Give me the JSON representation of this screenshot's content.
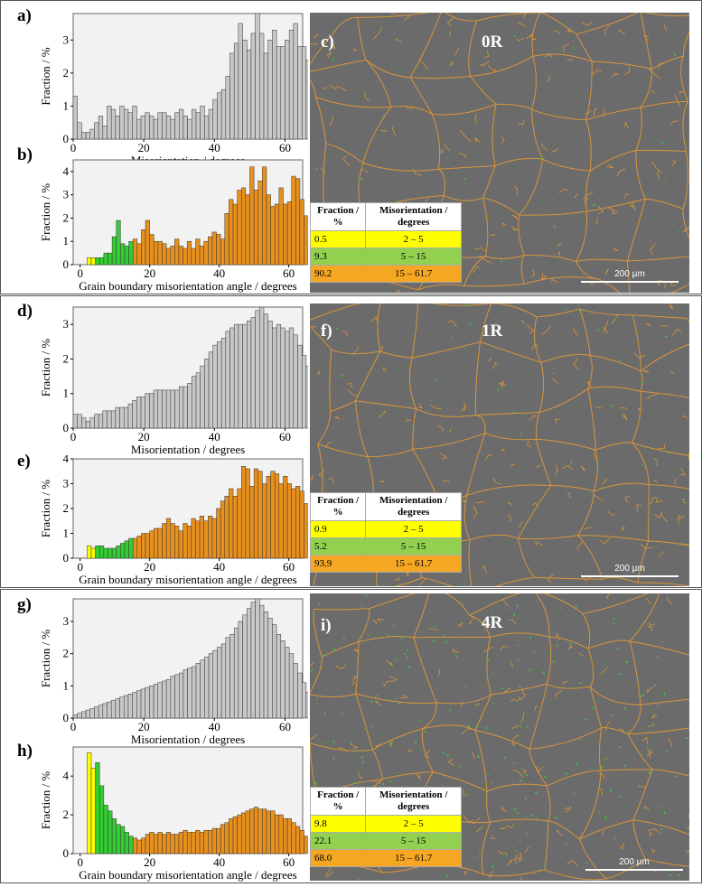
{
  "colors": {
    "gray": "#c8c8c8",
    "yellow": "#ffff00",
    "green": "#33cc33",
    "orange": "#e8901e",
    "map_bg": "#6b6b6b",
    "boundary_orange": "#d9953a",
    "boundary_green": "#3ccf3c"
  },
  "panels": [
    {
      "id": "top",
      "labels": {
        "hist_all": "a)",
        "hist_color": "b)",
        "map": "c)"
      },
      "sample": "0R",
      "table": {
        "head": [
          "Fraction / %",
          "Misorientation / degrees"
        ],
        "rows": [
          {
            "fraction": "0.5",
            "range": "2 – 5",
            "color": "#ffff00"
          },
          {
            "fraction": "9.3",
            "range": "5 – 15",
            "color": "#92d050"
          },
          {
            "fraction": "90.2",
            "range": "15 – 61.7",
            "color": "#f5a623"
          }
        ]
      },
      "scale": "200 µm"
    },
    {
      "id": "mid",
      "labels": {
        "hist_all": "d)",
        "hist_color": "e)",
        "map": "f)"
      },
      "sample": "1R",
      "table": {
        "head": [
          "Fraction / %",
          "Misorientation / degrees"
        ],
        "rows": [
          {
            "fraction": "0.9",
            "range": "2 – 5",
            "color": "#ffff00"
          },
          {
            "fraction": "5.2",
            "range": "5 – 15",
            "color": "#92d050"
          },
          {
            "fraction": "93.9",
            "range": "15 – 61.7",
            "color": "#f5a623"
          }
        ]
      },
      "scale": "200 µm"
    },
    {
      "id": "bot",
      "labels": {
        "hist_all": "g)",
        "hist_color": "h)",
        "map": "i)"
      },
      "sample": "4R",
      "table": {
        "head": [
          "Fraction / %",
          "Misorientation / degrees"
        ],
        "rows": [
          {
            "fraction": "9.8",
            "range": "2 – 5",
            "color": "#ffff00"
          },
          {
            "fraction": "22.1",
            "range": "5 – 15",
            "color": "#92d050"
          },
          {
            "fraction": "68.0",
            "range": "15 – 61.7",
            "color": "#f5a623"
          }
        ]
      },
      "scale": "200 µm"
    }
  ],
  "chart_data": [
    {
      "id": "a",
      "type": "bar",
      "title": "",
      "xlabel": "Misorientation / degrees",
      "ylabel": "Fraction / %",
      "xlim": [
        0,
        65
      ],
      "ylim": [
        0,
        3.8
      ],
      "xticks": [
        0,
        20,
        40,
        60
      ],
      "yticks": [
        0,
        1,
        2,
        3
      ],
      "bin": 1.2,
      "values": [
        1.3,
        0.5,
        0.2,
        0.2,
        0.3,
        0.5,
        0.7,
        0.4,
        1.0,
        0.9,
        0.7,
        1.0,
        0.9,
        0.8,
        1.0,
        0.6,
        0.7,
        0.8,
        0.7,
        0.6,
        0.8,
        0.8,
        0.7,
        0.6,
        0.8,
        0.9,
        0.7,
        0.6,
        0.9,
        0.8,
        1.0,
        0.7,
        0.9,
        1.2,
        1.4,
        1.5,
        1.9,
        2.6,
        2.9,
        3.5,
        3.0,
        2.7,
        3.2,
        3.8,
        3.2,
        2.6,
        3.0,
        3.3,
        2.8,
        2.8,
        3.0,
        3.3,
        3.5,
        2.8,
        2.8,
        2.4,
        3.2,
        2.6,
        1.9,
        1.1,
        0.5
      ]
    },
    {
      "id": "b",
      "type": "bar",
      "xlabel": "Grain boundary misorientation angle / degrees",
      "ylabel": "Fraction / %",
      "xlim": [
        -2,
        64
      ],
      "ylim": [
        0,
        4.5
      ],
      "xticks": [
        0,
        20,
        40,
        60
      ],
      "yticks": [
        0,
        1,
        2,
        3,
        4
      ],
      "start": 2,
      "bin": 1.2,
      "values": [
        0.3,
        0.3,
        0.3,
        0.3,
        0.5,
        0.5,
        1.2,
        1.9,
        0.9,
        0.8,
        1.0,
        1.1,
        0.9,
        1.5,
        1.9,
        1.3,
        1.0,
        1.0,
        0.9,
        0.7,
        0.8,
        1.1,
        0.8,
        0.7,
        1.0,
        0.7,
        1.1,
        0.8,
        1.0,
        1.2,
        1.4,
        1.3,
        1.1,
        2.2,
        2.8,
        2.6,
        3.2,
        3.3,
        3.0,
        4.2,
        3.2,
        3.6,
        4.2,
        3.0,
        2.5,
        2.6,
        3.3,
        2.6,
        2.7,
        3.8,
        3.7,
        2.8,
        2.1,
        1.1,
        0.2
      ],
      "groups": [
        {
          "name": "2-5",
          "color": "#ffff00",
          "to": 5
        },
        {
          "name": "5-15",
          "color": "#33cc33",
          "to": 15
        },
        {
          "name": "15-61.7",
          "color": "#e8901e",
          "to": 62
        }
      ]
    },
    {
      "id": "d",
      "type": "bar",
      "xlabel": "Misorientation / degrees",
      "ylabel": "Fraction / %",
      "xlim": [
        0,
        65
      ],
      "ylim": [
        0,
        3.5
      ],
      "xticks": [
        0,
        20,
        40,
        60
      ],
      "yticks": [
        0,
        1,
        2,
        3
      ],
      "bin": 1.2,
      "values": [
        0.4,
        0.4,
        0.3,
        0.2,
        0.3,
        0.4,
        0.4,
        0.5,
        0.5,
        0.5,
        0.6,
        0.6,
        0.6,
        0.7,
        0.8,
        0.9,
        0.9,
        1.0,
        1.0,
        1.1,
        1.1,
        1.1,
        1.1,
        1.1,
        1.1,
        1.2,
        1.2,
        1.3,
        1.5,
        1.6,
        1.8,
        2.0,
        2.2,
        2.4,
        2.5,
        2.6,
        2.8,
        2.9,
        3.0,
        3.0,
        3.0,
        3.1,
        3.2,
        3.4,
        3.5,
        3.3,
        3.1,
        2.9,
        3.0,
        2.9,
        2.8,
        2.9,
        2.7,
        2.4,
        2.1,
        1.8,
        1.3,
        0.6,
        0.1
      ]
    },
    {
      "id": "e",
      "type": "bar",
      "xlabel": "Grain boundary misorientation angle / degrees",
      "ylabel": "Fraction / %",
      "xlim": [
        -2,
        64
      ],
      "ylim": [
        0,
        4
      ],
      "xticks": [
        0,
        20,
        40,
        60
      ],
      "yticks": [
        0,
        1,
        2,
        3,
        4
      ],
      "start": 2,
      "bin": 1.2,
      "values": [
        0.5,
        0.4,
        0.5,
        0.5,
        0.4,
        0.4,
        0.4,
        0.5,
        0.6,
        0.7,
        0.8,
        0.8,
        0.9,
        1.0,
        1.0,
        1.1,
        1.2,
        1.2,
        1.4,
        1.6,
        1.4,
        1.3,
        1.1,
        1.4,
        1.3,
        1.6,
        1.5,
        1.7,
        1.5,
        1.7,
        1.6,
        2.0,
        2.3,
        2.5,
        2.8,
        2.5,
        2.8,
        3.7,
        3.6,
        2.9,
        3.6,
        3.5,
        3.0,
        3.3,
        3.5,
        3.4,
        3.0,
        3.3,
        3.0,
        2.8,
        2.9,
        2.7,
        2.2,
        1.5,
        1.0
      ],
      "groups": [
        {
          "name": "2-5",
          "color": "#ffff00",
          "to": 5
        },
        {
          "name": "5-15",
          "color": "#33cc33",
          "to": 15
        },
        {
          "name": "15-61.7",
          "color": "#e8901e",
          "to": 62
        }
      ]
    },
    {
      "id": "g",
      "type": "bar",
      "xlabel": "Misorientation / degrees",
      "ylabel": "Fraction / %",
      "xlim": [
        0,
        65
      ],
      "ylim": [
        0,
        3.7
      ],
      "xticks": [
        0,
        20,
        40,
        60
      ],
      "yticks": [
        0,
        1,
        2,
        3
      ],
      "bin": 1.2,
      "values": [
        0.1,
        0.15,
        0.2,
        0.25,
        0.3,
        0.35,
        0.4,
        0.45,
        0.5,
        0.55,
        0.6,
        0.65,
        0.7,
        0.75,
        0.8,
        0.85,
        0.9,
        0.95,
        1.0,
        1.05,
        1.1,
        1.15,
        1.2,
        1.3,
        1.35,
        1.4,
        1.5,
        1.55,
        1.6,
        1.7,
        1.8,
        1.9,
        2.0,
        2.1,
        2.2,
        2.3,
        2.5,
        2.6,
        2.8,
        3.0,
        3.2,
        3.4,
        3.6,
        3.7,
        3.5,
        3.3,
        3.1,
        2.9,
        2.6,
        2.4,
        2.2,
        2.0,
        1.7,
        1.4,
        1.1,
        0.8,
        0.5,
        0.2
      ]
    },
    {
      "id": "h",
      "type": "bar",
      "xlabel": "Grain boundary misorientation angle / degrees",
      "ylabel": "Fraction / %",
      "xlim": [
        -2,
        64
      ],
      "ylim": [
        0,
        5.5
      ],
      "xticks": [
        0,
        20,
        40,
        60
      ],
      "yticks": [
        0,
        2,
        4
      ],
      "start": 2,
      "bin": 1.2,
      "values": [
        5.2,
        4.4,
        4.7,
        3.5,
        2.5,
        2.2,
        1.8,
        1.5,
        1.4,
        1.1,
        0.9,
        0.8,
        0.7,
        0.8,
        1.0,
        1.1,
        1.0,
        1.1,
        1.0,
        1.1,
        1.0,
        1.0,
        1.1,
        1.2,
        1.1,
        1.1,
        1.2,
        1.1,
        1.2,
        1.2,
        1.3,
        1.3,
        1.5,
        1.6,
        1.8,
        1.9,
        2.0,
        2.1,
        2.2,
        2.3,
        2.4,
        2.3,
        2.3,
        2.2,
        2.2,
        2.0,
        2.0,
        1.8,
        1.8,
        1.6,
        1.4,
        1.2,
        0.9,
        0.5
      ],
      "groups": [
        {
          "name": "2-5",
          "color": "#ffff00",
          "to": 5
        },
        {
          "name": "5-15",
          "color": "#33cc33",
          "to": 15
        },
        {
          "name": "15-61.7",
          "color": "#e8901e",
          "to": 62
        }
      ]
    }
  ]
}
